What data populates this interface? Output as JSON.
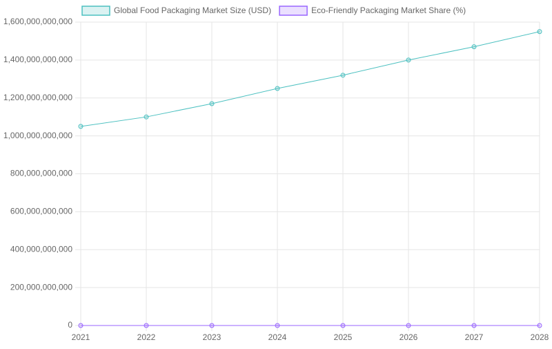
{
  "chart_data": {
    "type": "line",
    "categories": [
      "2021",
      "2022",
      "2023",
      "2024",
      "2025",
      "2026",
      "2027",
      "2028"
    ],
    "series": [
      {
        "name": "Global Food Packaging Market Size (USD)",
        "color": "#4bc0c0",
        "values": [
          1050000000000,
          1100000000000,
          1170000000000,
          1250000000000,
          1320000000000,
          1400000000000,
          1470000000000,
          1550000000000
        ]
      },
      {
        "name": "Eco-Friendly Packaging Market Share (%)",
        "color": "#9966ff",
        "values": [
          15,
          17,
          20,
          23,
          26,
          29,
          32,
          35
        ]
      }
    ],
    "ylim": [
      0,
      1600000000000
    ],
    "yticks": [
      0,
      {
        "value": 200000000000,
        "label": "200,000,000,000"
      },
      {
        "value": 400000000000,
        "label": "400,000,000,000"
      },
      {
        "value": 600000000000,
        "label": "600,000,000,000"
      },
      {
        "value": 800000000000,
        "label": "800,000,000,000"
      },
      {
        "value": 1000000000000,
        "label": "1,000,000,000,000"
      },
      {
        "value": 1200000000000,
        "label": "1,200,000,000,000"
      },
      {
        "value": 1400000000000,
        "label": "1,400,000,000,000"
      },
      {
        "value": 1600000000000,
        "label": "1,600,000,000,000"
      }
    ],
    "grid": true,
    "legend": "top"
  }
}
